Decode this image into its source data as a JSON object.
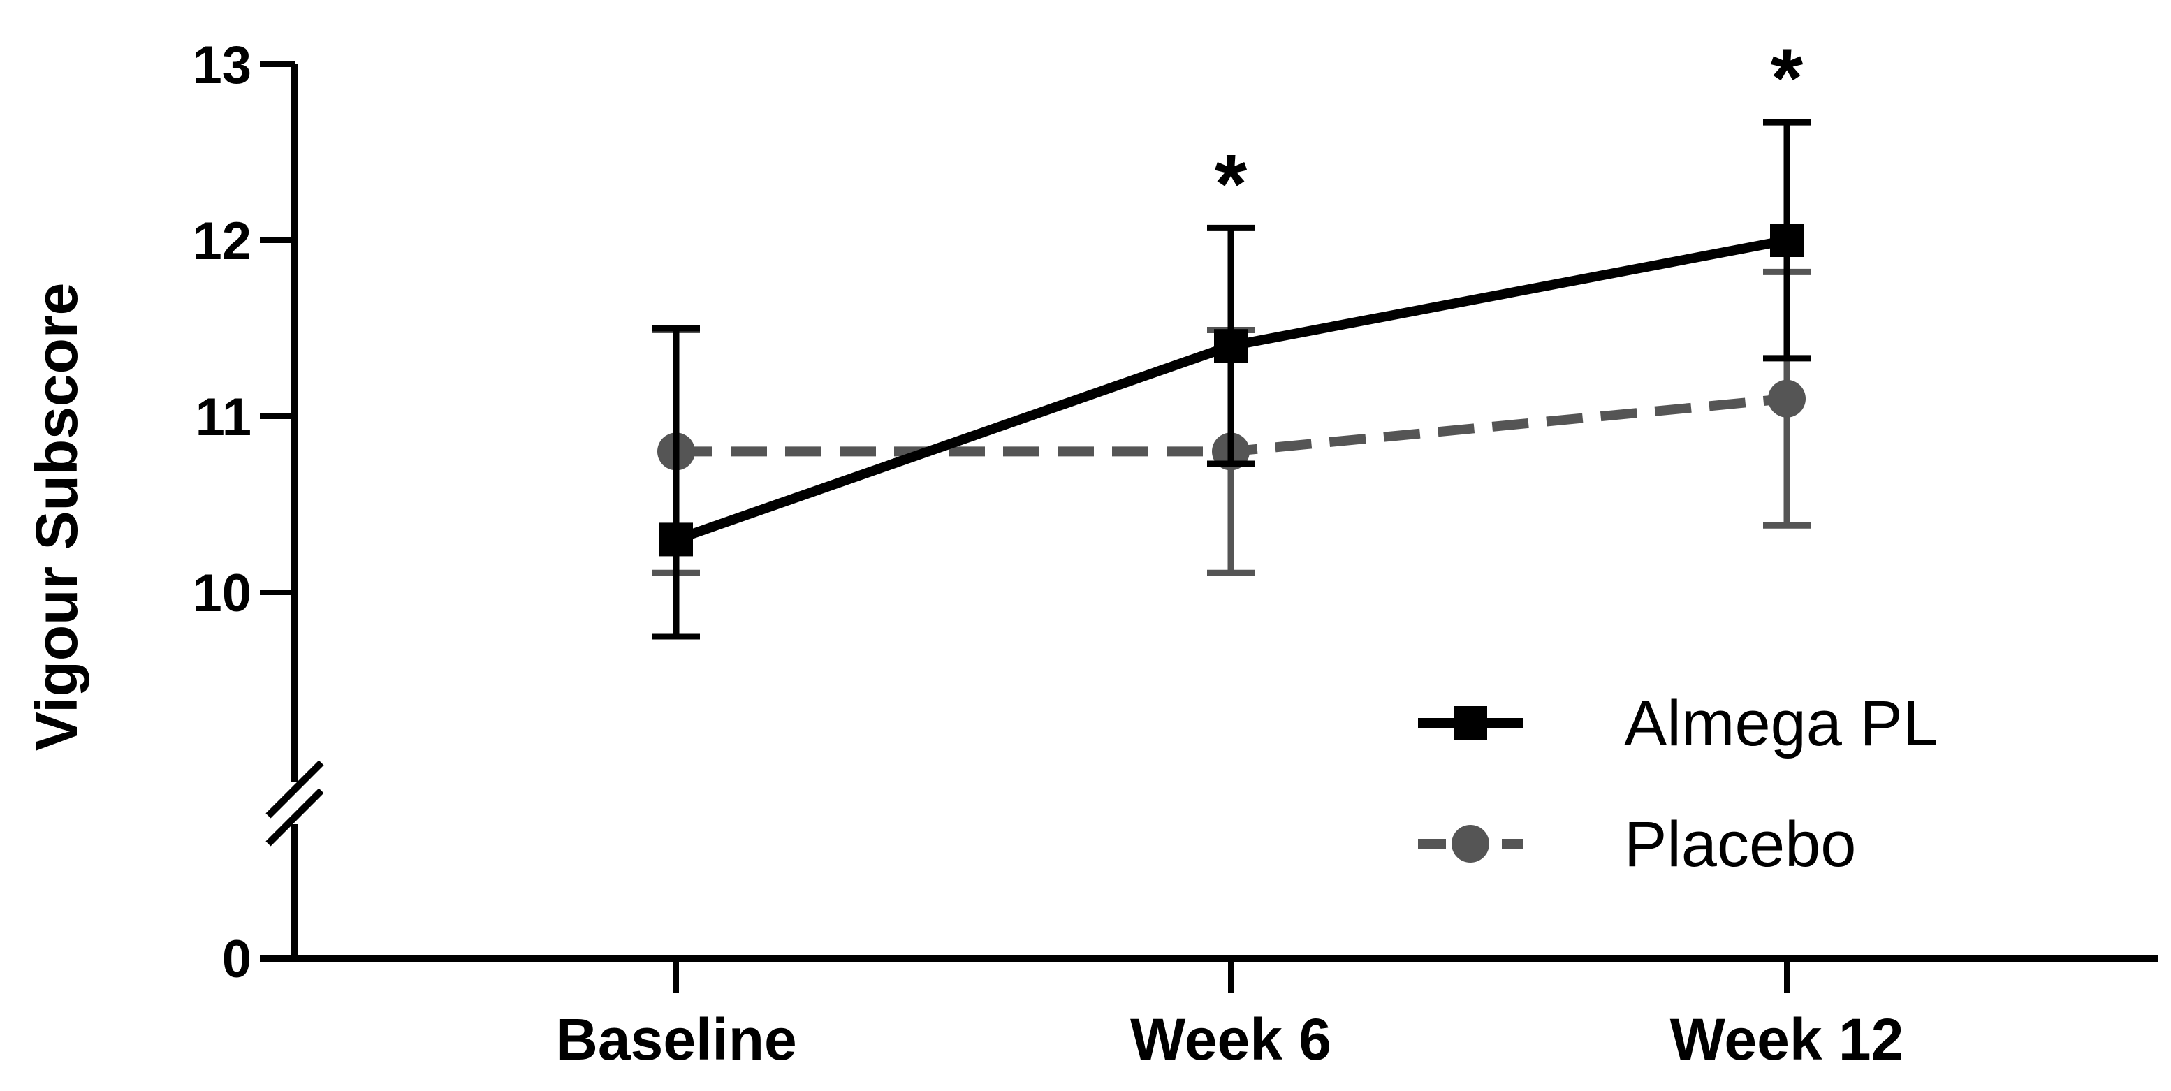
{
  "chart_data": {
    "type": "line",
    "title": "",
    "xlabel": "",
    "ylabel": "Vigour Subscore",
    "categories": [
      "Baseline",
      "Week 6",
      "Week 12"
    ],
    "ylim": [
      0,
      13
    ],
    "axis_break": {
      "from": 0,
      "to": 9
    },
    "yticks": [
      0,
      10,
      11,
      12,
      13
    ],
    "ytick_labels": [
      "0",
      "10",
      "11",
      "12",
      "13"
    ],
    "grid": false,
    "legend_position": "bottom-right",
    "series": [
      {
        "name": "Almega PL",
        "values": [
          10.3,
          11.4,
          12.0
        ],
        "err_upper": [
          1.2,
          0.67,
          0.67
        ],
        "err_lower": [
          0.55,
          0.67,
          0.67
        ],
        "color": "#000000",
        "marker": "square",
        "line_style": "solid"
      },
      {
        "name": "Placebo",
        "values": [
          10.8,
          10.8,
          11.1
        ],
        "err_upper": [
          0.69,
          0.69,
          0.72
        ],
        "err_lower": [
          0.69,
          0.69,
          0.72
        ],
        "color": "#555555",
        "marker": "circle",
        "line_style": "dashed"
      }
    ],
    "annotations": [
      {
        "category": "Week 6",
        "text": "*"
      },
      {
        "category": "Week 12",
        "text": "*"
      }
    ]
  }
}
